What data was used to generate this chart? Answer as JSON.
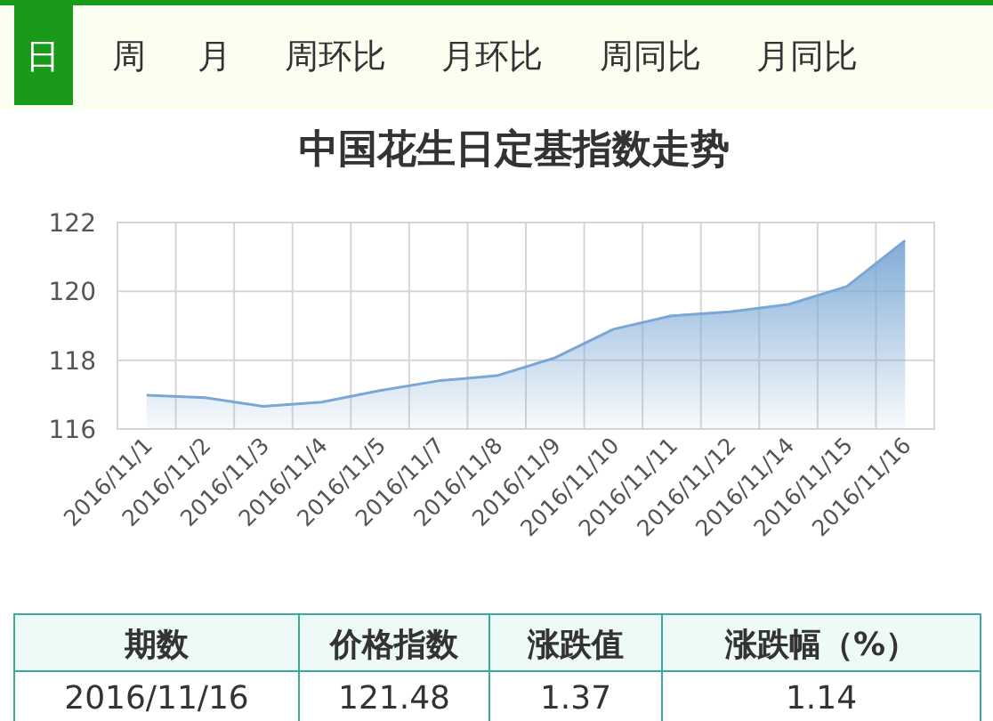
{
  "chart_data": {
    "type": "area",
    "title": "中国花生日定基指数走势",
    "categories": [
      "2016/11/1",
      "2016/11/2",
      "2016/11/3",
      "2016/11/4",
      "2016/11/5",
      "2016/11/7",
      "2016/11/8",
      "2016/11/9",
      "2016/11/10",
      "2016/11/11",
      "2016/11/12",
      "2016/11/14",
      "2016/11/15",
      "2016/11/16"
    ],
    "series": [
      {
        "color": "#7aa7d6",
        "values": [
          116.98,
          116.91,
          116.66,
          116.78,
          117.12,
          117.4,
          117.55,
          118.07,
          118.9,
          119.29,
          119.41,
          119.62,
          120.14,
          121.48
        ]
      }
    ],
    "ylim": [
      116,
      122
    ],
    "yticks": [
      116,
      118,
      120,
      122
    ],
    "grid": true,
    "annotations": [
      "日",
      "周",
      "月",
      "周环比",
      "月环比",
      "周同比",
      "月同比",
      "期数",
      "价格指数",
      "涨跌值",
      "涨跌幅（%）",
      "2016/11/16",
      "121.48",
      "1.37",
      "1.14"
    ]
  }
}
